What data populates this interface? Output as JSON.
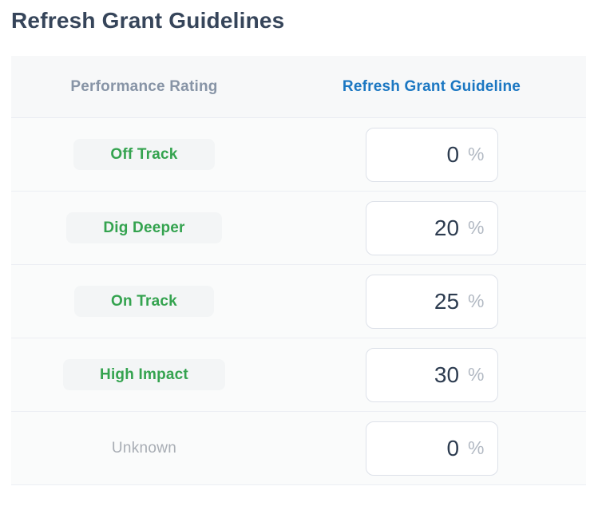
{
  "page": {
    "title": "Refresh Grant Guidelines"
  },
  "table": {
    "header": {
      "performance_rating": "Performance Rating",
      "refresh_grant_guideline": "Refresh Grant Guideline"
    },
    "rows": [
      {
        "rating": "Off Track",
        "value": "0",
        "unit": "%"
      },
      {
        "rating": "Dig Deeper",
        "value": "20",
        "unit": "%"
      },
      {
        "rating": "On Track",
        "value": "25",
        "unit": "%"
      },
      {
        "rating": "High Impact",
        "value": "30",
        "unit": "%"
      },
      {
        "rating": "Unknown",
        "value": "0",
        "unit": "%"
      }
    ]
  },
  "colors": {
    "title_dark": "#36455a",
    "header_muted_gray": "#8794a6",
    "accent_blue": "#1b77c2",
    "rating_green": "#34a34f",
    "badge_background": "#f3f5f6",
    "unknown_gray": "#a8adb4",
    "input_value_dark": "#2d3c50",
    "percent_sign_gray": "#b2b9c3",
    "table_background": "#fafbfb",
    "divider": "#eceef3"
  }
}
